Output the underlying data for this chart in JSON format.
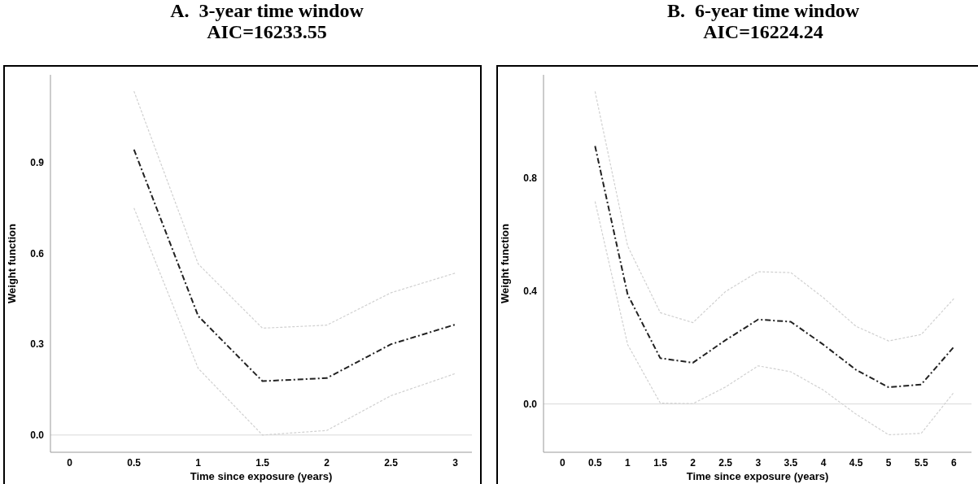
{
  "chart_data": [
    {
      "type": "line",
      "title": "A.  3-year time window",
      "subtitle": "AIC=16233.55",
      "xlabel": "Time since exposure (years)",
      "ylabel": "Weight function",
      "x": [
        0.5,
        1,
        1.5,
        2,
        2.5,
        3
      ],
      "xlim": [
        -0.15,
        3.13
      ],
      "xticks": [
        0,
        0.5,
        1,
        1.5,
        2,
        2.5,
        3
      ],
      "ylim": [
        -0.057,
        1.19
      ],
      "yticks": [
        {
          "value": 0,
          "label": "0.0"
        },
        0.3,
        0.6,
        0.9
      ],
      "grid": false,
      "legend": false,
      "marker": "none",
      "ref_lines": [
        {
          "axis": "y",
          "value": 0,
          "color": "#d9d9d9"
        }
      ],
      "series": [
        {
          "color": "#d0d0d0",
          "line_style": "dotted",
          "values": [
            1.136,
            0.565,
            0.353,
            0.363,
            0.47,
            0.535
          ]
        },
        {
          "color": "#d0d0d0",
          "line_style": "dotted",
          "values": [
            0.75,
            0.22,
            0.0,
            0.015,
            0.13,
            0.203
          ]
        },
        {
          "color": "#222222",
          "line_style": "dashed",
          "values": [
            0.943,
            0.393,
            0.178,
            0.188,
            0.3,
            0.365
          ]
        }
      ]
    },
    {
      "type": "line",
      "title": "B.  6-year time window",
      "subtitle": "AIC=16224.24",
      "xlabel": "Time since exposure (years)",
      "ylabel": "Weight function",
      "x": [
        0.5,
        1,
        1.5,
        2,
        2.5,
        3,
        3.5,
        4,
        4.5,
        5,
        5.5,
        6
      ],
      "xlim": [
        -0.29,
        6.27
      ],
      "xticks": [
        0,
        0.5,
        1,
        1.5,
        2,
        2.5,
        3,
        3.5,
        4,
        4.5,
        5,
        5.5,
        6
      ],
      "ylim": [
        -0.171,
        1.165
      ],
      "yticks": [
        {
          "value": 0,
          "label": "0.0"
        },
        0.4,
        0.8
      ],
      "grid": false,
      "legend": false,
      "marker": "none",
      "ref_lines": [
        {
          "axis": "y",
          "value": 0,
          "color": "#d9d9d9"
        }
      ],
      "series": [
        {
          "color": "#d0d0d0",
          "line_style": "dotted",
          "values": [
            1.106,
            0.559,
            0.323,
            0.288,
            0.398,
            0.468,
            0.465,
            0.376,
            0.275,
            0.223,
            0.246,
            0.373
          ]
        },
        {
          "color": "#d0d0d0",
          "line_style": "dotted",
          "values": [
            0.717,
            0.21,
            0.003,
            0.001,
            0.06,
            0.135,
            0.114,
            0.049,
            -0.036,
            -0.109,
            -0.104,
            0.041
          ]
        },
        {
          "color": "#222222",
          "line_style": "dashed",
          "values": [
            0.913,
            0.387,
            0.162,
            0.146,
            0.226,
            0.299,
            0.291,
            0.21,
            0.121,
            0.059,
            0.069,
            0.202
          ]
        }
      ]
    }
  ]
}
